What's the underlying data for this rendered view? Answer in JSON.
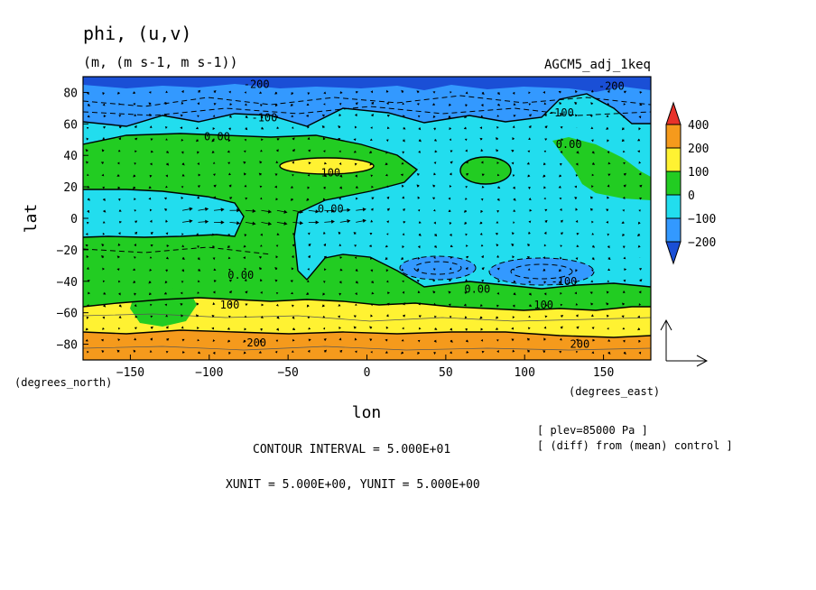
{
  "chart_data": {
    "type": "contour-vector",
    "title": "phi, (u,v)",
    "units": "(m, (m s-1, m s-1))",
    "run_label": "AGCM5_adj_1keq",
    "xlabel": "lon",
    "ylabel": "lat",
    "x_units": "(degrees_east)",
    "y_units": "(degrees_north)",
    "xlim": [
      -180,
      180
    ],
    "ylim": [
      -90,
      90
    ],
    "x_ticks": [
      -150,
      -100,
      -50,
      0,
      50,
      100,
      150
    ],
    "y_ticks": [
      -80,
      -60,
      -40,
      -20,
      0,
      20,
      40,
      60,
      80
    ],
    "colorbar": {
      "levels": [
        400,
        200,
        100,
        0,
        -100,
        -200
      ],
      "colors": [
        "#e8322a",
        "#f59a1c",
        "#fff232",
        "#22cc22",
        "#22ddee",
        "#3399ff",
        "#1a4fd6"
      ]
    },
    "contour_labels": [
      {
        "text": "-200",
        "lon": -70,
        "lat": 85
      },
      {
        "text": "-200",
        "lon": 155,
        "lat": 84
      },
      {
        "text": "-100",
        "lon": -65,
        "lat": 64
      },
      {
        "text": "-100",
        "lon": 123,
        "lat": 67
      },
      {
        "text": "0.00",
        "lon": -95,
        "lat": 52
      },
      {
        "text": "0.00",
        "lon": 128,
        "lat": 47
      },
      {
        "text": "100",
        "lon": -23,
        "lat": 29
      },
      {
        "text": "0.00",
        "lon": -23,
        "lat": 6
      },
      {
        "text": "0.00",
        "lon": -80,
        "lat": -36
      },
      {
        "text": "0.00",
        "lon": 70,
        "lat": -45
      },
      {
        "text": "-100",
        "lon": 125,
        "lat": -40
      },
      {
        "text": "100",
        "lon": -87,
        "lat": -55
      },
      {
        "text": "100",
        "lon": 112,
        "lat": -55
      },
      {
        "text": "200",
        "lon": -70,
        "lat": -79
      },
      {
        "text": "200",
        "lon": 135,
        "lat": -80
      }
    ],
    "contour_interval_text": "CONTOUR INTERVAL = 5.000E+01",
    "vector_unit_text": "XUNIT = 5.000E+00, YUNIT = 5.000E+00",
    "plev_text": "[ plev=85000 Pa ]",
    "diff_text": "[ (diff) from (mean) control ]"
  }
}
